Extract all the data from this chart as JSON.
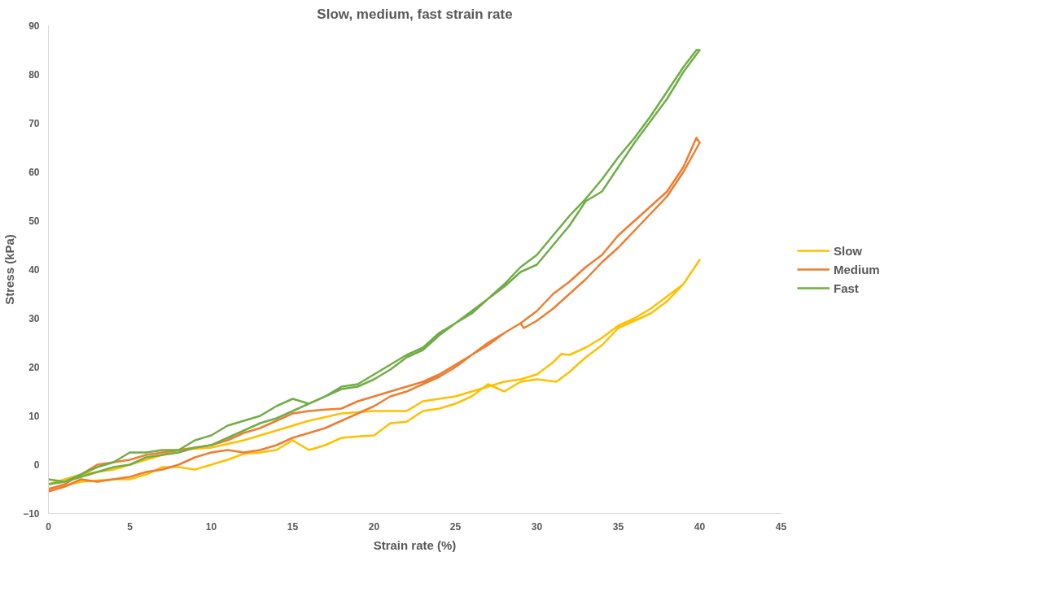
{
  "chart_data": {
    "type": "line",
    "title": "Slow, medium, fast strain rate",
    "xlabel": "Strain rate (%)",
    "ylabel": "Stress (kPa)",
    "xlim": [
      0,
      45
    ],
    "xticks": [
      0,
      5,
      10,
      15,
      20,
      25,
      30,
      35,
      40,
      45
    ],
    "ylim": [
      -10,
      90
    ],
    "yticks": [
      -10,
      0,
      10,
      20,
      30,
      40,
      50,
      60,
      70,
      80,
      90
    ],
    "grid": false,
    "legend": "right",
    "marker": "none",
    "line_style": "solid",
    "series": [
      {
        "name": "Slow",
        "color": "#ffc000",
        "x": [
          0,
          2,
          4,
          6,
          8,
          10,
          12,
          14,
          16,
          18,
          20,
          22,
          23,
          25,
          27,
          28,
          29,
          30,
          31,
          31.5,
          32,
          33,
          34,
          35,
          36,
          37,
          38,
          39,
          40,
          39,
          38,
          37,
          36,
          35,
          34,
          33,
          32,
          31.2,
          30,
          29,
          28,
          27,
          26,
          25,
          24,
          23,
          22,
          21,
          20,
          19,
          18,
          17,
          16,
          15,
          14,
          13,
          12,
          11,
          10,
          9,
          8,
          7,
          6,
          5,
          4,
          2,
          0
        ],
        "values": [
          -4,
          -2,
          -1,
          1,
          3,
          3.5,
          5,
          7,
          9,
          10.5,
          11,
          11,
          13,
          14,
          16,
          17,
          17.5,
          18.5,
          21,
          22.7,
          22.5,
          24,
          26,
          28.5,
          30,
          32,
          34.5,
          37,
          42,
          37,
          33.5,
          31,
          29.5,
          28,
          24.5,
          22,
          19,
          17,
          17.5,
          17,
          15,
          16.5,
          14,
          12.5,
          11.5,
          11,
          8.8,
          8.5,
          6,
          5.8,
          5.5,
          4,
          3,
          5,
          3,
          2.5,
          2.2,
          1,
          0,
          -1,
          -0.5,
          -0.5,
          -2,
          -3,
          -3,
          -3.5,
          -5
        ]
      },
      {
        "name": "Medium",
        "color": "#ed7d31",
        "x": [
          0,
          1,
          2,
          3,
          4,
          5,
          6,
          7,
          8,
          9,
          10,
          11,
          12,
          13,
          14,
          15,
          16,
          17,
          18,
          19,
          20,
          21,
          22,
          23,
          24,
          25,
          26,
          27,
          28,
          29,
          30,
          31,
          32,
          33,
          34,
          35,
          36,
          37,
          38,
          39,
          39.8,
          40,
          39,
          38,
          37,
          36,
          35,
          34,
          33,
          32,
          31,
          30,
          29.2,
          29,
          28,
          27,
          26,
          25,
          24,
          23,
          22,
          21,
          20,
          19,
          18,
          17,
          16,
          15,
          14,
          13,
          12,
          11,
          10,
          9,
          8,
          7,
          6,
          5,
          4,
          3,
          2,
          1,
          0
        ],
        "values": [
          -5,
          -4,
          -2,
          0,
          0.5,
          1,
          2,
          2.5,
          3,
          3.5,
          4,
          5,
          6.5,
          7.5,
          9,
          10.5,
          11,
          11.3,
          11.5,
          13,
          14,
          15,
          16,
          17,
          18.5,
          20.5,
          22.5,
          25,
          27,
          29,
          31.5,
          35,
          37.5,
          40.5,
          43,
          47,
          50,
          53,
          56,
          61,
          67,
          66,
          60,
          55,
          51.5,
          48,
          44.5,
          41.5,
          38,
          35,
          32,
          29.5,
          28,
          29,
          27,
          24.5,
          22.5,
          20,
          18,
          16.5,
          15,
          14,
          12,
          10.5,
          9,
          7.5,
          6.5,
          5.5,
          4,
          3,
          2.5,
          3,
          2.5,
          1.5,
          0,
          -1,
          -1.5,
          -2.5,
          -3,
          -3.5,
          -3,
          -4.5,
          -5.5
        ]
      },
      {
        "name": "Fast",
        "color": "#70ad47",
        "x": [
          0,
          1,
          2,
          3,
          4,
          5,
          6,
          7,
          8,
          9,
          10,
          11,
          12,
          13,
          14,
          15,
          16,
          17,
          18,
          19,
          20,
          21,
          22,
          23,
          24,
          25,
          26,
          27,
          28,
          29,
          30,
          31,
          32,
          33,
          34,
          35,
          36,
          37,
          38,
          39,
          39.8,
          40,
          39,
          38,
          37,
          36,
          35,
          34,
          33,
          32,
          31,
          30,
          29,
          28,
          27,
          26,
          25,
          24,
          23,
          22,
          21,
          20,
          19,
          18,
          17,
          16,
          15,
          14,
          13,
          12,
          11,
          10,
          9,
          8,
          7,
          6,
          5,
          4,
          3,
          2,
          1,
          0
        ],
        "values": [
          -3,
          -3.5,
          -2,
          -0.5,
          0.5,
          2.5,
          2.5,
          3,
          3,
          5,
          6,
          8,
          9,
          10,
          12,
          13.5,
          12.5,
          14,
          16,
          16.5,
          18.5,
          20.5,
          22.5,
          24,
          27,
          29,
          31,
          34,
          37,
          40.5,
          43,
          47,
          51,
          54.5,
          58.5,
          63,
          67,
          71.5,
          76.5,
          81.5,
          85,
          85,
          80.5,
          75,
          70.5,
          66,
          61,
          56,
          54,
          49,
          45,
          41,
          39.5,
          36.5,
          34,
          31.5,
          29,
          26.5,
          23.5,
          22,
          19.5,
          17.5,
          16,
          15.5,
          14,
          12.5,
          11,
          9.5,
          8.5,
          7,
          5.5,
          4,
          3.5,
          2.5,
          2,
          1.5,
          0,
          -0.5,
          -1.5,
          -2.5,
          -3.5,
          -4
        ]
      }
    ]
  }
}
